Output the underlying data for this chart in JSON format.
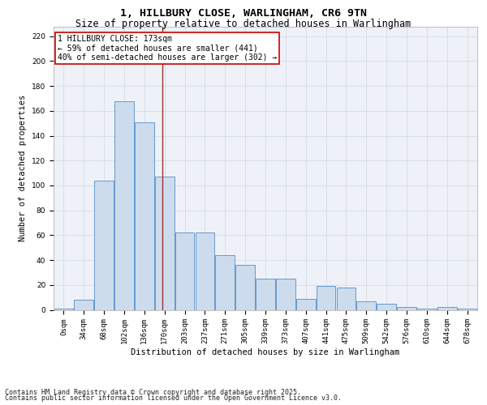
{
  "title_line1": "1, HILLBURY CLOSE, WARLINGHAM, CR6 9TN",
  "title_line2": "Size of property relative to detached houses in Warlingham",
  "xlabel": "Distribution of detached houses by size in Warlingham",
  "ylabel": "Number of detached properties",
  "bar_labels": [
    "0sqm",
    "34sqm",
    "68sqm",
    "102sqm",
    "136sqm",
    "170sqm",
    "203sqm",
    "237sqm",
    "271sqm",
    "305sqm",
    "339sqm",
    "373sqm",
    "407sqm",
    "441sqm",
    "475sqm",
    "509sqm",
    "542sqm",
    "576sqm",
    "610sqm",
    "644sqm",
    "678sqm"
  ],
  "bar_values": [
    1,
    8,
    104,
    168,
    151,
    107,
    62,
    62,
    44,
    36,
    25,
    25,
    9,
    19,
    18,
    7,
    5,
    2,
    1,
    2,
    1
  ],
  "bar_color": "#ccdcec",
  "bar_edge_color": "#6699cc",
  "property_line_x": 4.88,
  "annotation_text": "1 HILLBURY CLOSE: 173sqm\n← 59% of detached houses are smaller (441)\n40% of semi-detached houses are larger (302) →",
  "annotation_box_color": "#ffffff",
  "annotation_box_edge": "#cc0000",
  "vline_color": "#993333",
  "ylim": [
    0,
    228
  ],
  "yticks": [
    0,
    20,
    40,
    60,
    80,
    100,
    120,
    140,
    160,
    180,
    200,
    220
  ],
  "grid_color": "#d0d8e0",
  "bg_color": "#eef2f8",
  "footer_line1": "Contains HM Land Registry data © Crown copyright and database right 2025.",
  "footer_line2": "Contains public sector information licensed under the Open Government Licence v3.0.",
  "title_fontsize": 9.5,
  "subtitle_fontsize": 8.5,
  "axis_label_fontsize": 7.5,
  "tick_fontsize": 6.5,
  "annotation_fontsize": 7,
  "footer_fontsize": 6
}
